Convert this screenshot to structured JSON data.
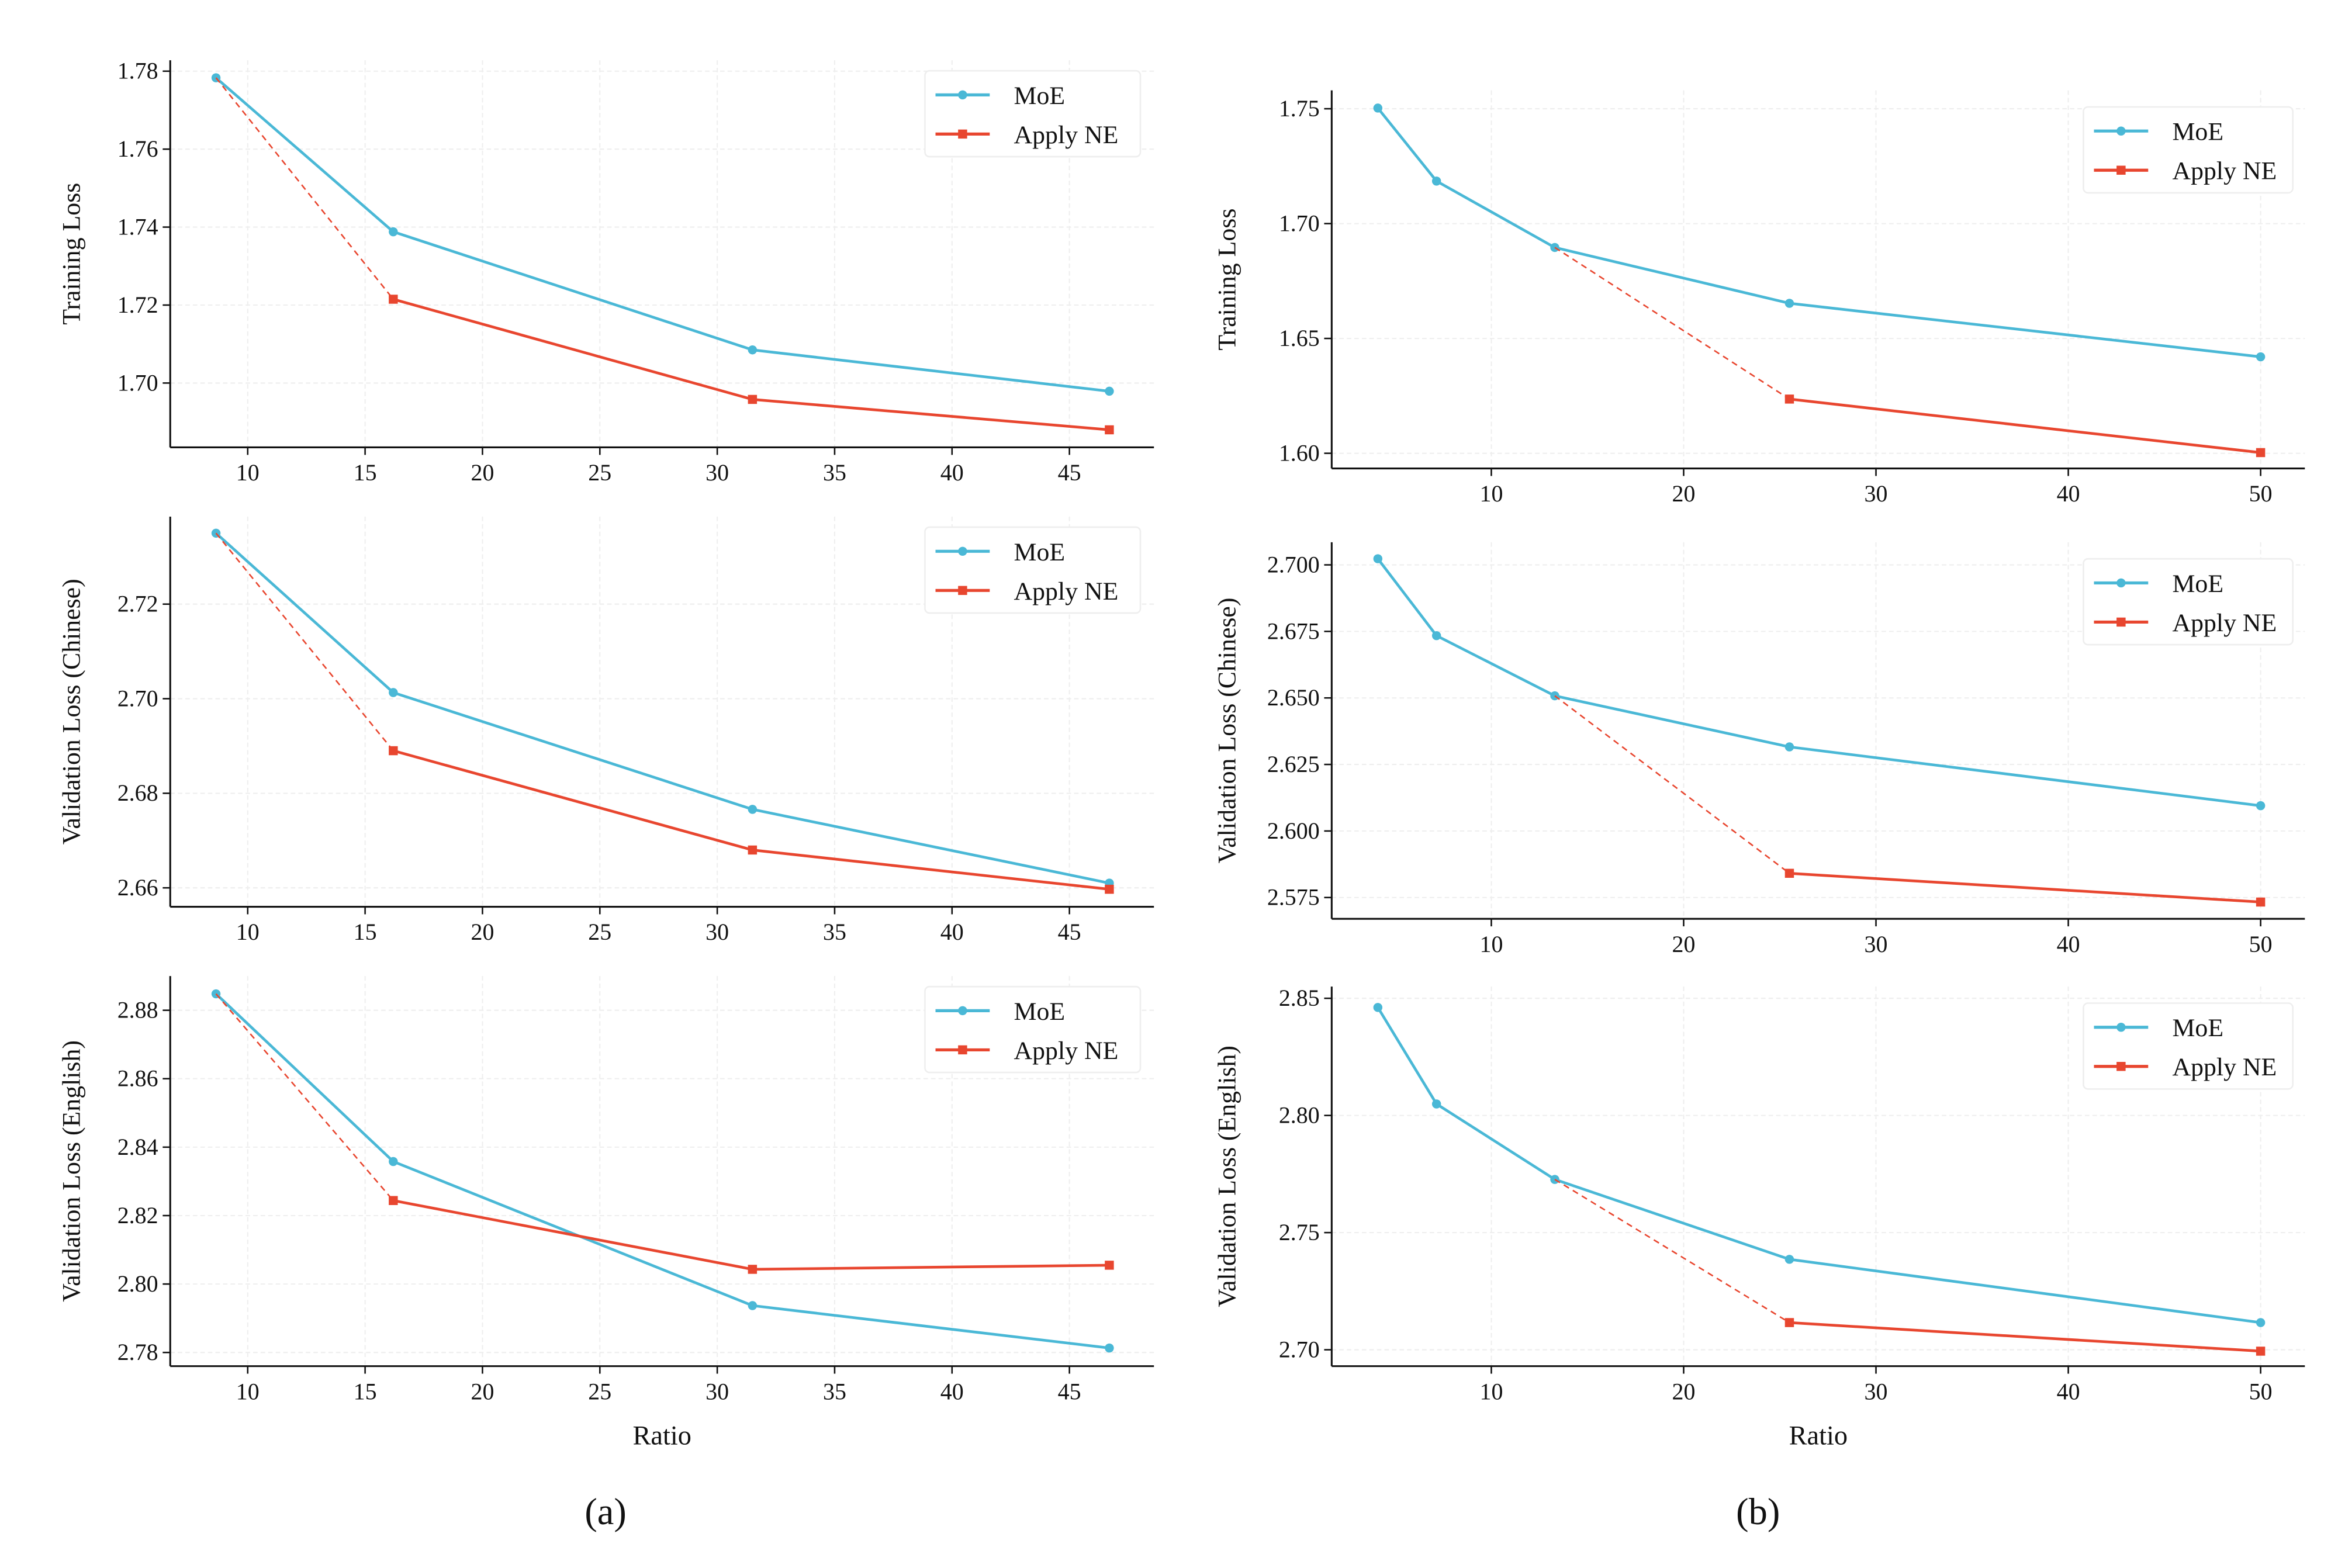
{
  "colors": {
    "moe": "#4ab8d6",
    "ne": "#e8462f",
    "axis": "#111111",
    "grid": "#eeeeee"
  },
  "captions": [
    "(a)",
    "(b)"
  ],
  "chart_data": [
    {
      "type": "line",
      "panel": "a",
      "ylabel": "Training Loss",
      "xlabel": "",
      "xlim": [
        6.7,
        48.6
      ],
      "ylim": [
        1.6835,
        1.7828
      ],
      "xticks": [
        10,
        15,
        20,
        25,
        30,
        35,
        40,
        45
      ],
      "yticks": [
        "1.70",
        "1.72",
        "1.74",
        "1.76",
        "1.78"
      ],
      "legend": "top-right",
      "grid": true,
      "series": [
        {
          "name": "MoE",
          "marker": "circle",
          "x": [
            8.65,
            16.2,
            31.5,
            46.7
          ],
          "y": [
            1.7783,
            1.7388,
            1.7085,
            1.6979
          ]
        },
        {
          "name": "Apply NE",
          "marker": "square",
          "x": [
            8.65,
            16.2,
            31.5,
            46.7
          ],
          "y": [
            1.7783,
            1.7215,
            1.6958,
            1.688
          ],
          "dashed_first_segment": true
        }
      ]
    },
    {
      "type": "line",
      "panel": "a",
      "ylabel": "Validation Loss (Chinese)",
      "xlabel": "",
      "xlim": [
        6.7,
        48.6
      ],
      "ylim": [
        2.656,
        2.7385
      ],
      "xticks": [
        10,
        15,
        20,
        25,
        30,
        35,
        40,
        45
      ],
      "yticks": [
        "2.66",
        "2.68",
        "2.70",
        "2.72"
      ],
      "legend": "top-right",
      "grid": true,
      "series": [
        {
          "name": "MoE",
          "marker": "circle",
          "x": [
            8.65,
            16.2,
            31.5,
            46.7
          ],
          "y": [
            2.735,
            2.7013,
            2.6766,
            2.661
          ]
        },
        {
          "name": "Apply NE",
          "marker": "square",
          "x": [
            8.65,
            16.2,
            31.5,
            46.7
          ],
          "y": [
            2.735,
            2.689,
            2.668,
            2.6597
          ],
          "dashed_first_segment": true
        }
      ]
    },
    {
      "type": "line",
      "panel": "a",
      "ylabel": "Validation Loss (English)",
      "xlabel": "Ratio",
      "xlim": [
        6.7,
        48.6
      ],
      "ylim": [
        2.776,
        2.89
      ],
      "xticks": [
        10,
        15,
        20,
        25,
        30,
        35,
        40,
        45
      ],
      "yticks": [
        "2.78",
        "2.80",
        "2.82",
        "2.84",
        "2.86",
        "2.88"
      ],
      "legend": "top-right",
      "grid": true,
      "series": [
        {
          "name": "MoE",
          "marker": "circle",
          "x": [
            8.65,
            16.2,
            31.5,
            46.7
          ],
          "y": [
            2.8848,
            2.8358,
            2.7937,
            2.7813
          ]
        },
        {
          "name": "Apply NE",
          "marker": "square",
          "x": [
            8.65,
            16.2,
            31.5,
            46.7
          ],
          "y": [
            2.8848,
            2.8244,
            2.8043,
            2.8055
          ],
          "dashed_first_segment": true
        }
      ]
    },
    {
      "type": "line",
      "panel": "b",
      "ylabel": "Training Loss",
      "xlabel": "",
      "xlim": [
        1.7,
        52.3
      ],
      "ylim": [
        1.5934,
        1.758
      ],
      "xticks": [
        10,
        20,
        30,
        40,
        50
      ],
      "yticks": [
        "1.60",
        "1.65",
        "1.70",
        "1.75"
      ],
      "legend": "top-right",
      "grid": true,
      "series": [
        {
          "name": "MoE",
          "marker": "circle",
          "x": [
            4.1,
            7.15,
            13.3,
            25.5,
            50
          ],
          "y": [
            1.7503,
            1.7185,
            1.6896,
            1.6653,
            1.642
          ]
        },
        {
          "name": "Apply NE",
          "marker": "square",
          "x": [
            13.3,
            25.5,
            50
          ],
          "y": [
            1.6896,
            1.6236,
            1.6003
          ],
          "dashed_first_segment": true
        }
      ]
    },
    {
      "type": "line",
      "panel": "b",
      "ylabel": "Validation Loss (Chinese)",
      "xlabel": "",
      "xlim": [
        1.7,
        52.3
      ],
      "ylim": [
        2.567,
        2.7085
      ],
      "xticks": [
        10,
        20,
        30,
        40,
        50
      ],
      "yticks": [
        "2.575",
        "2.600",
        "2.625",
        "2.650",
        "2.675",
        "2.700"
      ],
      "legend": "top-right",
      "grid": true,
      "series": [
        {
          "name": "MoE",
          "marker": "circle",
          "x": [
            4.1,
            7.15,
            13.3,
            25.5,
            50
          ],
          "y": [
            2.7023,
            2.6734,
            2.6508,
            2.6316,
            2.6095
          ]
        },
        {
          "name": "Apply NE",
          "marker": "square",
          "x": [
            13.3,
            25.5,
            50
          ],
          "y": [
            2.6508,
            2.5841,
            2.5733
          ],
          "dashed_first_segment": true
        }
      ]
    },
    {
      "type": "line",
      "panel": "b",
      "ylabel": "Validation Loss (English)",
      "xlabel": "Ratio",
      "xlim": [
        1.7,
        52.3
      ],
      "ylim": [
        2.693,
        2.855
      ],
      "xticks": [
        10,
        20,
        30,
        40,
        50
      ],
      "yticks": [
        "2.70",
        "2.75",
        "2.80",
        "2.85"
      ],
      "legend": "top-right",
      "grid": true,
      "series": [
        {
          "name": "MoE",
          "marker": "circle",
          "x": [
            4.1,
            7.15,
            13.3,
            25.5,
            50
          ],
          "y": [
            2.8461,
            2.8049,
            2.7727,
            2.7386,
            2.7116
          ]
        },
        {
          "name": "Apply NE",
          "marker": "square",
          "x": [
            13.3,
            25.5,
            50
          ],
          "y": [
            2.7727,
            2.7116,
            2.6994
          ],
          "dashed_first_segment": true
        }
      ]
    }
  ]
}
